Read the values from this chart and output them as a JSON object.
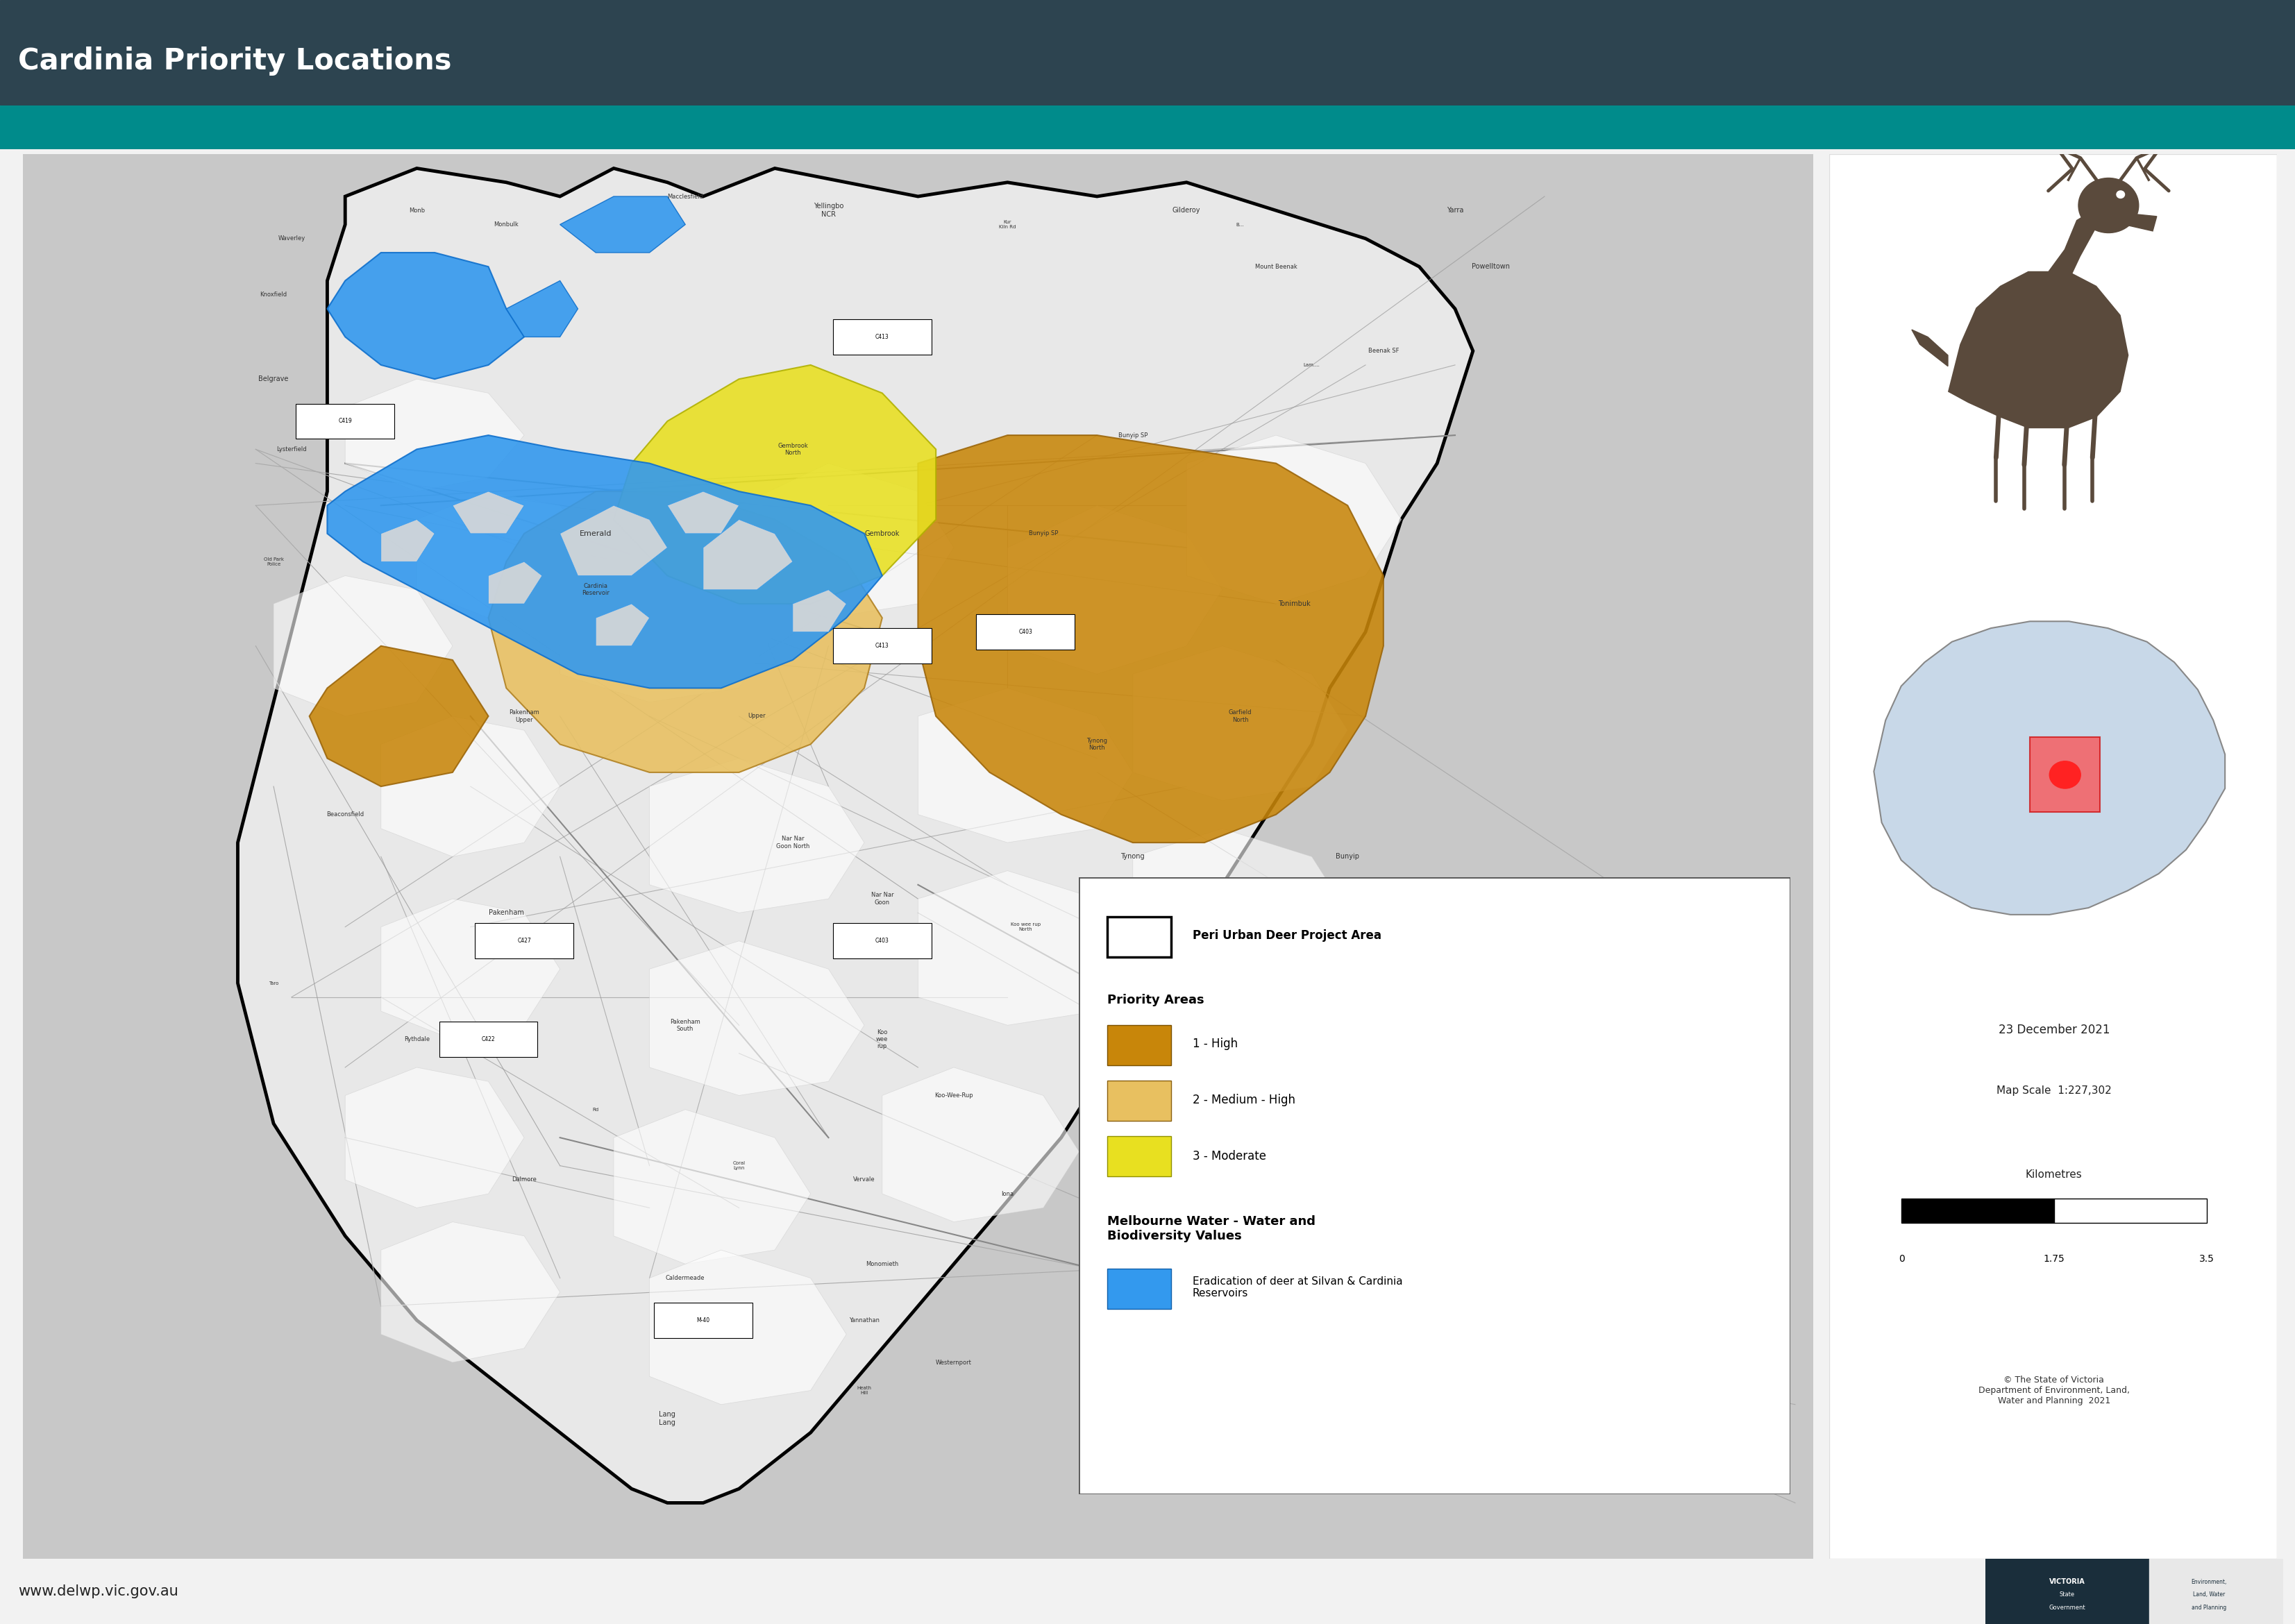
{
  "title": "Cardinia Priority Locations",
  "title_bg_color": "#2d4450",
  "teal_stripe_color": "#008b8b",
  "bg_color": "#f0f0f0",
  "map_bg_color": "#e0e0e0",
  "right_panel_bg": "#ffffff",
  "legend_title1": "Peri Urban Deer Project Area",
  "legend_title2": "Priority Areas",
  "legend_items": [
    {
      "label": "1 - High",
      "color": "#c8860a"
    },
    {
      "label": "2 - Medium - High",
      "color": "#e8c060"
    },
    {
      "label": "3 - Moderate",
      "color": "#e8e020"
    }
  ],
  "legend_title3": "Melbourne Water - Water and\nBiodiversity Values",
  "legend_item_blue": {
    "label": "Eradication of deer at Silvan & Cardinia\nReservoirs",
    "color": "#3399ee"
  },
  "footer_text": "www.delwp.vic.gov.au",
  "date_text": "23 December 2021",
  "scale_text": "Map Scale  1:227,302",
  "km_text": "Kilometres",
  "scale_bar": [
    "0",
    "1.75",
    "3.5"
  ],
  "copyright_text": "© The State of Victoria\nDepartment of Environment, Land,\nWater and Planning  2021",
  "deer_color": "#5a4a3c",
  "map_white": "#ffffff",
  "map_light_grey": "#d4d4d4",
  "map_road_color": "#888888",
  "lga_fill": "#e8e8e8",
  "lga_edge": "#000000",
  "outside_fill": "#c8c8c8"
}
